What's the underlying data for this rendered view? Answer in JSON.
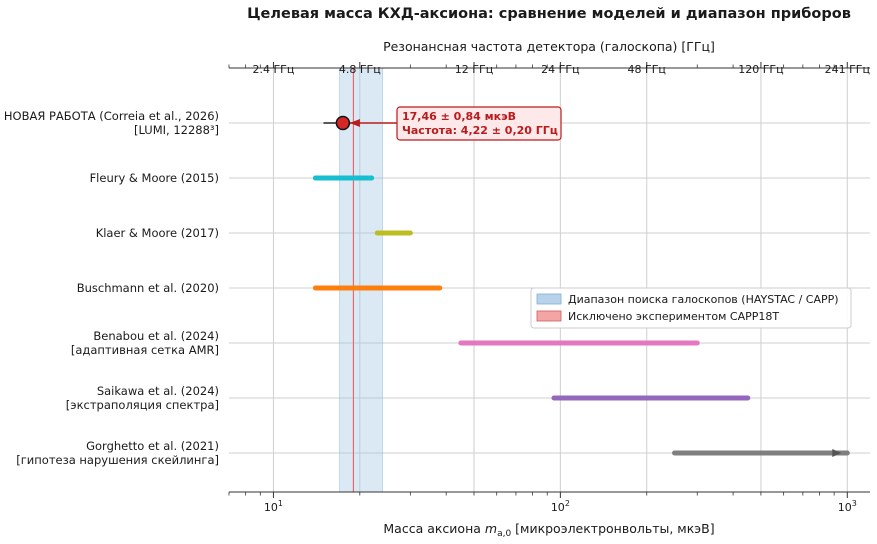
{
  "chart_data": {
    "type": "range",
    "title": "Целевая масса КХД-аксиона: сравнение моделей и диапазон приборов",
    "xlabel_prefix": "Масса аксиона ",
    "xlabel_var": "m",
    "xlabel_sub": "a,0",
    "xlabel_suffix": " [микроэлектронвольты, мкэВ]",
    "x_scale": "log",
    "xlim": [
      7,
      1200
    ],
    "x_major_ticks": [
      {
        "value": 10,
        "base": "10",
        "exp": "1"
      },
      {
        "value": 100,
        "base": "10",
        "exp": "2"
      },
      {
        "value": 1000,
        "base": "10",
        "exp": "3"
      }
    ],
    "top_axis": {
      "label": "Резонансная частота детектора (галоскопа) [ГГц]",
      "ticks": [
        {
          "mass": 10,
          "label": "2.4 ГГц"
        },
        {
          "mass": 20,
          "label": "4.8 ГГц"
        },
        {
          "mass": 50,
          "label": "12 ГГц"
        },
        {
          "mass": 100,
          "label": "24 ГГц"
        },
        {
          "mass": 200,
          "label": "48 ГГц"
        },
        {
          "mass": 500,
          "label": "120 ГГц"
        },
        {
          "mass": 1000,
          "label": "241 ГГц"
        }
      ]
    },
    "grid": true,
    "models": [
      {
        "line1": "НОВАЯ РАБОТА (Correia et al., 2026)",
        "line2": "[LUMI, 12288³]",
        "value": 17.46,
        "error": 0.84,
        "color": "#d62728"
      },
      {
        "line1": "Fleury & Moore (2015)",
        "line2": "",
        "min": 14,
        "max": 22,
        "color": "#17becf"
      },
      {
        "line1": "Klaer & Moore (2017)",
        "line2": "",
        "min": 23,
        "max": 30,
        "color": "#bcbd22"
      },
      {
        "line1": "Buschmann et al. (2020)",
        "line2": "",
        "min": 14,
        "max": 38,
        "color": "#ff7f0e"
      },
      {
        "line1": "Benabou et al. (2024)",
        "line2": "[адаптивная сетка AMR]",
        "min": 45,
        "max": 300,
        "color": "#e377c2"
      },
      {
        "line1": "Saikawa et al. (2024)",
        "line2": "[экстраполяция спектра]",
        "min": 95,
        "max": 450,
        "color": "#9467bd"
      },
      {
        "line1": "Gorghetto et al. (2021)",
        "line2": "[гипотеза нарушения скейлинга]",
        "min": 250,
        "max": 1000,
        "color": "#7f7f7f"
      }
    ],
    "haloscope_band": {
      "min": 17,
      "max": 24,
      "color": "#a6c8e3"
    },
    "excluded_line": {
      "value": 19,
      "color": "#e8696b"
    },
    "annotation": {
      "line1": "17,46 ± 0,84 мкэВ",
      "line2": "Частота: 4,22 ± 0,20 ГГц",
      "color": "#b91c1c"
    },
    "legend": {
      "placement": "center-right",
      "entries": [
        {
          "label": "Диапазон поиска галоскопов (HAYSTAC / CAPP)",
          "color": "#a6c8e3",
          "border": "#7fb0d6"
        },
        {
          "label": "Исключено экспериментом CAPP18T",
          "color": "#f08e90",
          "border": "#d45a5d"
        }
      ]
    }
  }
}
